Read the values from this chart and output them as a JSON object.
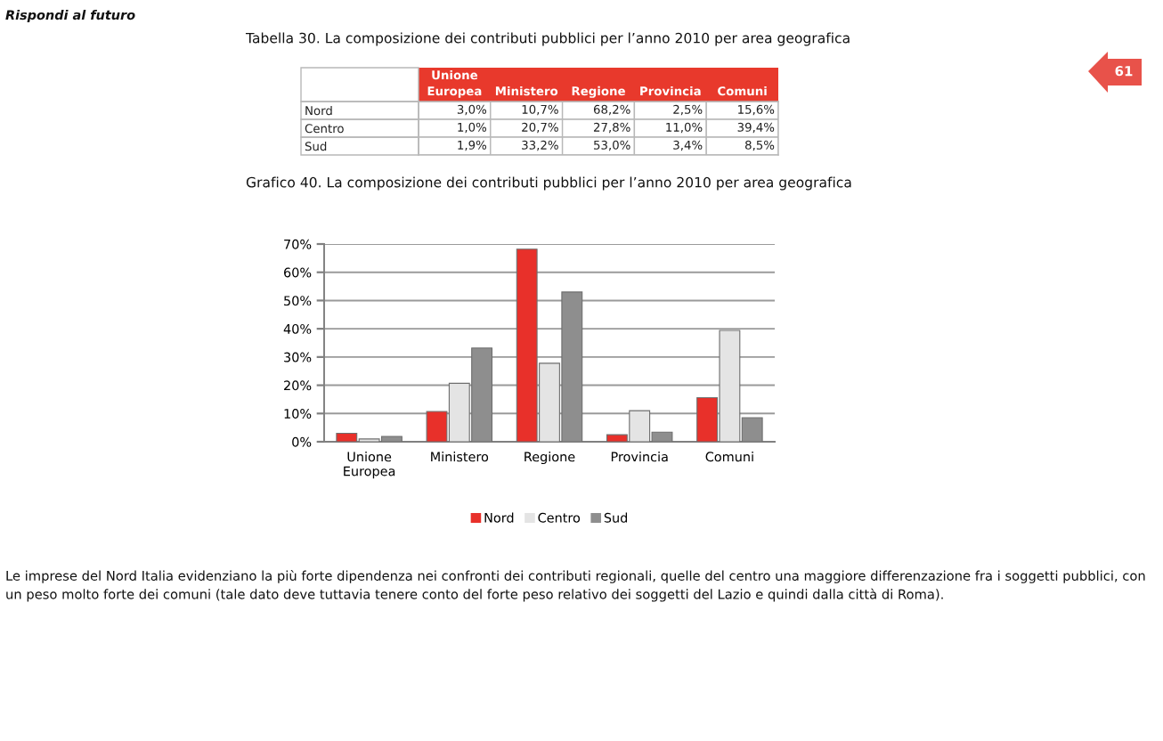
{
  "chart_data": [
    {
      "type": "other",
      "title": "Tabella 30. La composizione dei contributi pubblici per l’anno 2010 per area geografica",
      "categories": [
        "Unione Europea",
        "Ministero",
        "Regione",
        "Provincia",
        "Comuni"
      ],
      "y_categories": [
        "Nord",
        "Centro",
        "Sud"
      ],
      "cell_labels": [
        [
          "3,0%",
          "10,7%",
          "68,2%",
          "2,5%",
          "15,6%"
        ],
        [
          "1,0%",
          "20,7%",
          "27,8%",
          "11,0%",
          "39,4%"
        ],
        [
          "1,9%",
          "33,2%",
          "53,0%",
          "3,4%",
          "8,5%"
        ]
      ],
      "annotations": [
        "Rispondi al futuro",
        "61"
      ]
    },
    {
      "type": "bar",
      "title": "Grafico 40. La composizione dei contributi pubblici per l’anno 2010 per area geografica",
      "categories": [
        "Unione Europea",
        "Ministero",
        "Regione",
        "Provincia",
        "Comuni"
      ],
      "series": [
        {
          "name": "Nord",
          "color": "#e8302a",
          "values": [
            3.0,
            10.7,
            68.2,
            2.5,
            15.6
          ]
        },
        {
          "name": "Centro",
          "color": "#e4e4e4",
          "values": [
            1.0,
            20.7,
            27.8,
            11.0,
            39.4
          ]
        },
        {
          "name": "Sud",
          "color": "#8e8e8e",
          "values": [
            1.9,
            33.2,
            53.0,
            3.4,
            8.5
          ]
        }
      ],
      "ylim": [
        0,
        70
      ],
      "yticks": [
        {
          "value": 0,
          "label": "0%"
        },
        {
          "value": 10,
          "label": "10%"
        },
        {
          "value": 20,
          "label": "20%"
        },
        {
          "value": 30,
          "label": "30%"
        },
        {
          "value": 40,
          "label": "40%"
        },
        {
          "value": 50,
          "label": "50%"
        },
        {
          "value": 60,
          "label": "60%"
        },
        {
          "value": 70,
          "label": "70%"
        }
      ],
      "grid": "y",
      "legend": "bottom",
      "annotations": [
        "Le imprese del Nord Italia evidenziano la più forte dipendenza nei confronti dei contributi regionali, quelle del centro una maggiore differenzazione fra i soggetti pubblici, con un peso molto forte dei comuni (tale dato deve tuttavia tenere conto del forte peso relativo dei soggetti del Lazio e quindi dalla città di Roma)."
      ]
    }
  ]
}
